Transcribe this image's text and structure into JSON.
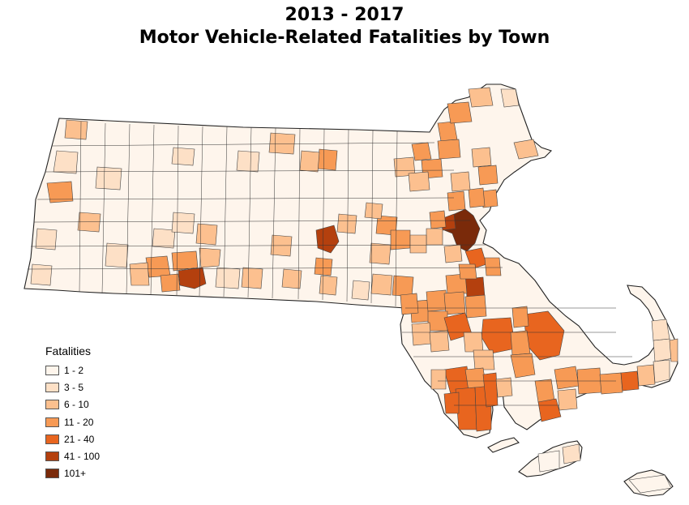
{
  "title": {
    "line1": "2013 - 2017",
    "line2": "Motor Vehicle-Related Fatalities by Town"
  },
  "legend": {
    "title": "Fatalities",
    "classes": [
      {
        "label": "1 - 2",
        "color": "#fef5ec"
      },
      {
        "label": "3 - 5",
        "color": "#fde0c6"
      },
      {
        "label": "6 - 10",
        "color": "#fcc08f"
      },
      {
        "label": "11 - 20",
        "color": "#f79a55"
      },
      {
        "label": "21 - 40",
        "color": "#e8651f"
      },
      {
        "label": "41 - 100",
        "color": "#b4400e"
      },
      {
        "label": "101+",
        "color": "#7a2a0a"
      }
    ]
  }
}
